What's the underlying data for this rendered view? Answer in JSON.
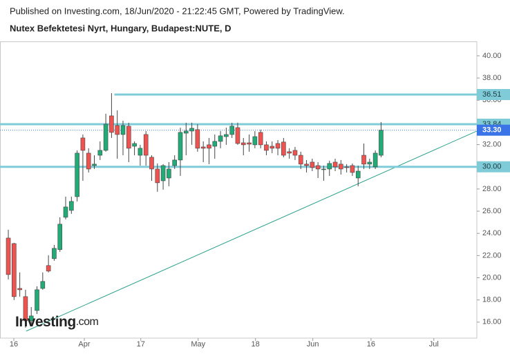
{
  "chart_data": {
    "type": "candlestick",
    "subtitle": "Published on Investing.com, 18/Jun/2020 - 21:22:45 GMT, Powered by TradingView.",
    "title": "Nutex Befektetesi Nyrt, Hungary, Budapest:NUTE, D",
    "logo": {
      "main": "Investing",
      "suffix": ".com"
    },
    "up_color": "#22ab76",
    "down_color": "#ef5350",
    "xlim": [
      -1.45,
      81.7
    ],
    "xticks": [
      {
        "value": 0.96,
        "label": "16"
      },
      {
        "value": 13.25,
        "label": "Apr"
      },
      {
        "value": 23.1,
        "label": "17"
      },
      {
        "value": 33.1,
        "label": "May"
      },
      {
        "value": 43.1,
        "label": "18"
      },
      {
        "value": 53.1,
        "label": "Jun"
      },
      {
        "value": 63.25,
        "label": "16"
      },
      {
        "value": 74.2,
        "label": "Jul"
      }
    ],
    "ylim": [
      14.56,
      41.3
    ],
    "yticks": [
      {
        "value": 16,
        "label": "16.00"
      },
      {
        "value": 18,
        "label": "18.00"
      },
      {
        "value": 20,
        "label": "20.00"
      },
      {
        "value": 22,
        "label": "22.00"
      },
      {
        "value": 24,
        "label": "24.00"
      },
      {
        "value": 26,
        "label": "26.00"
      },
      {
        "value": 28,
        "label": "28.00"
      },
      {
        "value": 30,
        "label": "30.00"
      },
      {
        "value": 32,
        "label": "32.00"
      },
      {
        "value": 34,
        "label": "34.00"
      },
      {
        "value": 36,
        "label": "36.00"
      },
      {
        "value": 38,
        "label": "38.00"
      },
      {
        "value": 40,
        "label": "40.00"
      }
    ],
    "open": [
      23.58,
      23.08,
      19.04,
      18.3,
      16.12,
      17.05,
      19.04,
      21.1,
      21.72,
      22.54,
      25.45,
      26.07,
      27.31,
      32.6,
      31.23,
      30.11,
      31.04,
      31.48,
      34.59,
      33.72,
      32.91,
      33.66,
      31.85,
      31.04,
      32.91,
      30.86,
      29.8,
      28.74,
      28.99,
      30.11,
      30.61,
      33.03,
      33.22,
      33.35,
      31.79,
      31.98,
      31.85,
      32.29,
      32.72,
      32.91,
      33.53,
      32.16,
      32.16,
      31.98,
      33.1,
      31.98,
      31.85,
      32.1,
      32.23,
      31.36,
      31.48,
      31.04,
      30.24,
      30.42,
      30.11,
      29.8,
      29.8,
      30.42,
      30.24,
      29.99,
      30.11,
      28.99,
      31.04,
      30.24,
      29.99,
      31.04
    ],
    "high": [
      24.33,
      23.15,
      20.48,
      18.92,
      17.36,
      19.23,
      20.48,
      22.03,
      22.96,
      25.45,
      27.31,
      27.31,
      31.48,
      32.91,
      31.67,
      31.04,
      32.29,
      34.78,
      36.64,
      35.09,
      34.15,
      33.97,
      32.29,
      31.98,
      33.22,
      31.04,
      30.3,
      30.24,
      30.42,
      31.04,
      33.53,
      33.97,
      33.97,
      33.84,
      32.29,
      32.6,
      32.91,
      33.22,
      33.53,
      33.97,
      33.97,
      32.6,
      32.91,
      33.22,
      33.35,
      32.29,
      32.29,
      32.41,
      32.6,
      31.67,
      31.79,
      31.36,
      30.61,
      30.73,
      30.42,
      30.11,
      30.55,
      30.73,
      30.61,
      30.24,
      30.3,
      30.11,
      32.1,
      30.73,
      31.48,
      34.03
    ],
    "low": [
      19.85,
      17.99,
      18.3,
      15.5,
      15.68,
      16.74,
      18.92,
      20.48,
      21.53,
      22.34,
      25.26,
      25.76,
      26.88,
      28.74,
      29.49,
      29.8,
      30.61,
      31.36,
      32.6,
      30.73,
      31.04,
      30.42,
      31.04,
      30.11,
      30.11,
      28.74,
      27.75,
      27.94,
      28.25,
      29.8,
      29.18,
      31.04,
      31.98,
      31.36,
      30.42,
      30.24,
      30.73,
      31.67,
      31.98,
      32.6,
      31.98,
      31.04,
      31.36,
      31.67,
      31.67,
      31.04,
      31.23,
      31.04,
      30.86,
      30.73,
      30.61,
      29.8,
      29.49,
      29.61,
      28.99,
      28.74,
      29.18,
      29.61,
      29.3,
      29.49,
      29.18,
      28.25,
      29.8,
      29.8,
      29.8,
      30.86
    ],
    "close": [
      20.29,
      18.3,
      18.92,
      16.12,
      16.56,
      18.92,
      19.67,
      20.6,
      22.65,
      24.83,
      26.38,
      26.88,
      31.23,
      31.48,
      29.8,
      30.24,
      31.48,
      33.84,
      33.1,
      32.91,
      33.72,
      31.67,
      32.1,
      31.67,
      31.04,
      29.8,
      28.56,
      30.11,
      29.8,
      30.61,
      33.1,
      33.22,
      33.47,
      31.67,
      31.67,
      31.67,
      32.29,
      32.79,
      32.91,
      33.66,
      32.1,
      31.98,
      32.04,
      32.72,
      31.98,
      31.48,
      31.67,
      31.67,
      31.04,
      31.23,
      31.04,
      30.24,
      30.11,
      29.93,
      29.8,
      29.8,
      30.3,
      29.99,
      29.8,
      29.93,
      29.49,
      29.61,
      30.24,
      30.42,
      31.23,
      33.3
    ],
    "levels": {
      "values": [
        36.51,
        33.84,
        30
      ],
      "value_labels": [
        "36.51",
        "33.84",
        "30.00"
      ],
      "color": "#7fcbd8"
    },
    "last": {
      "value": 33.3,
      "label": "33.30",
      "color": "#3a74e6"
    },
    "trendline": {
      "x": [
        3.1,
        81.7
      ],
      "y": [
        15.19,
        33.22
      ],
      "color": "#2aa08a"
    }
  }
}
